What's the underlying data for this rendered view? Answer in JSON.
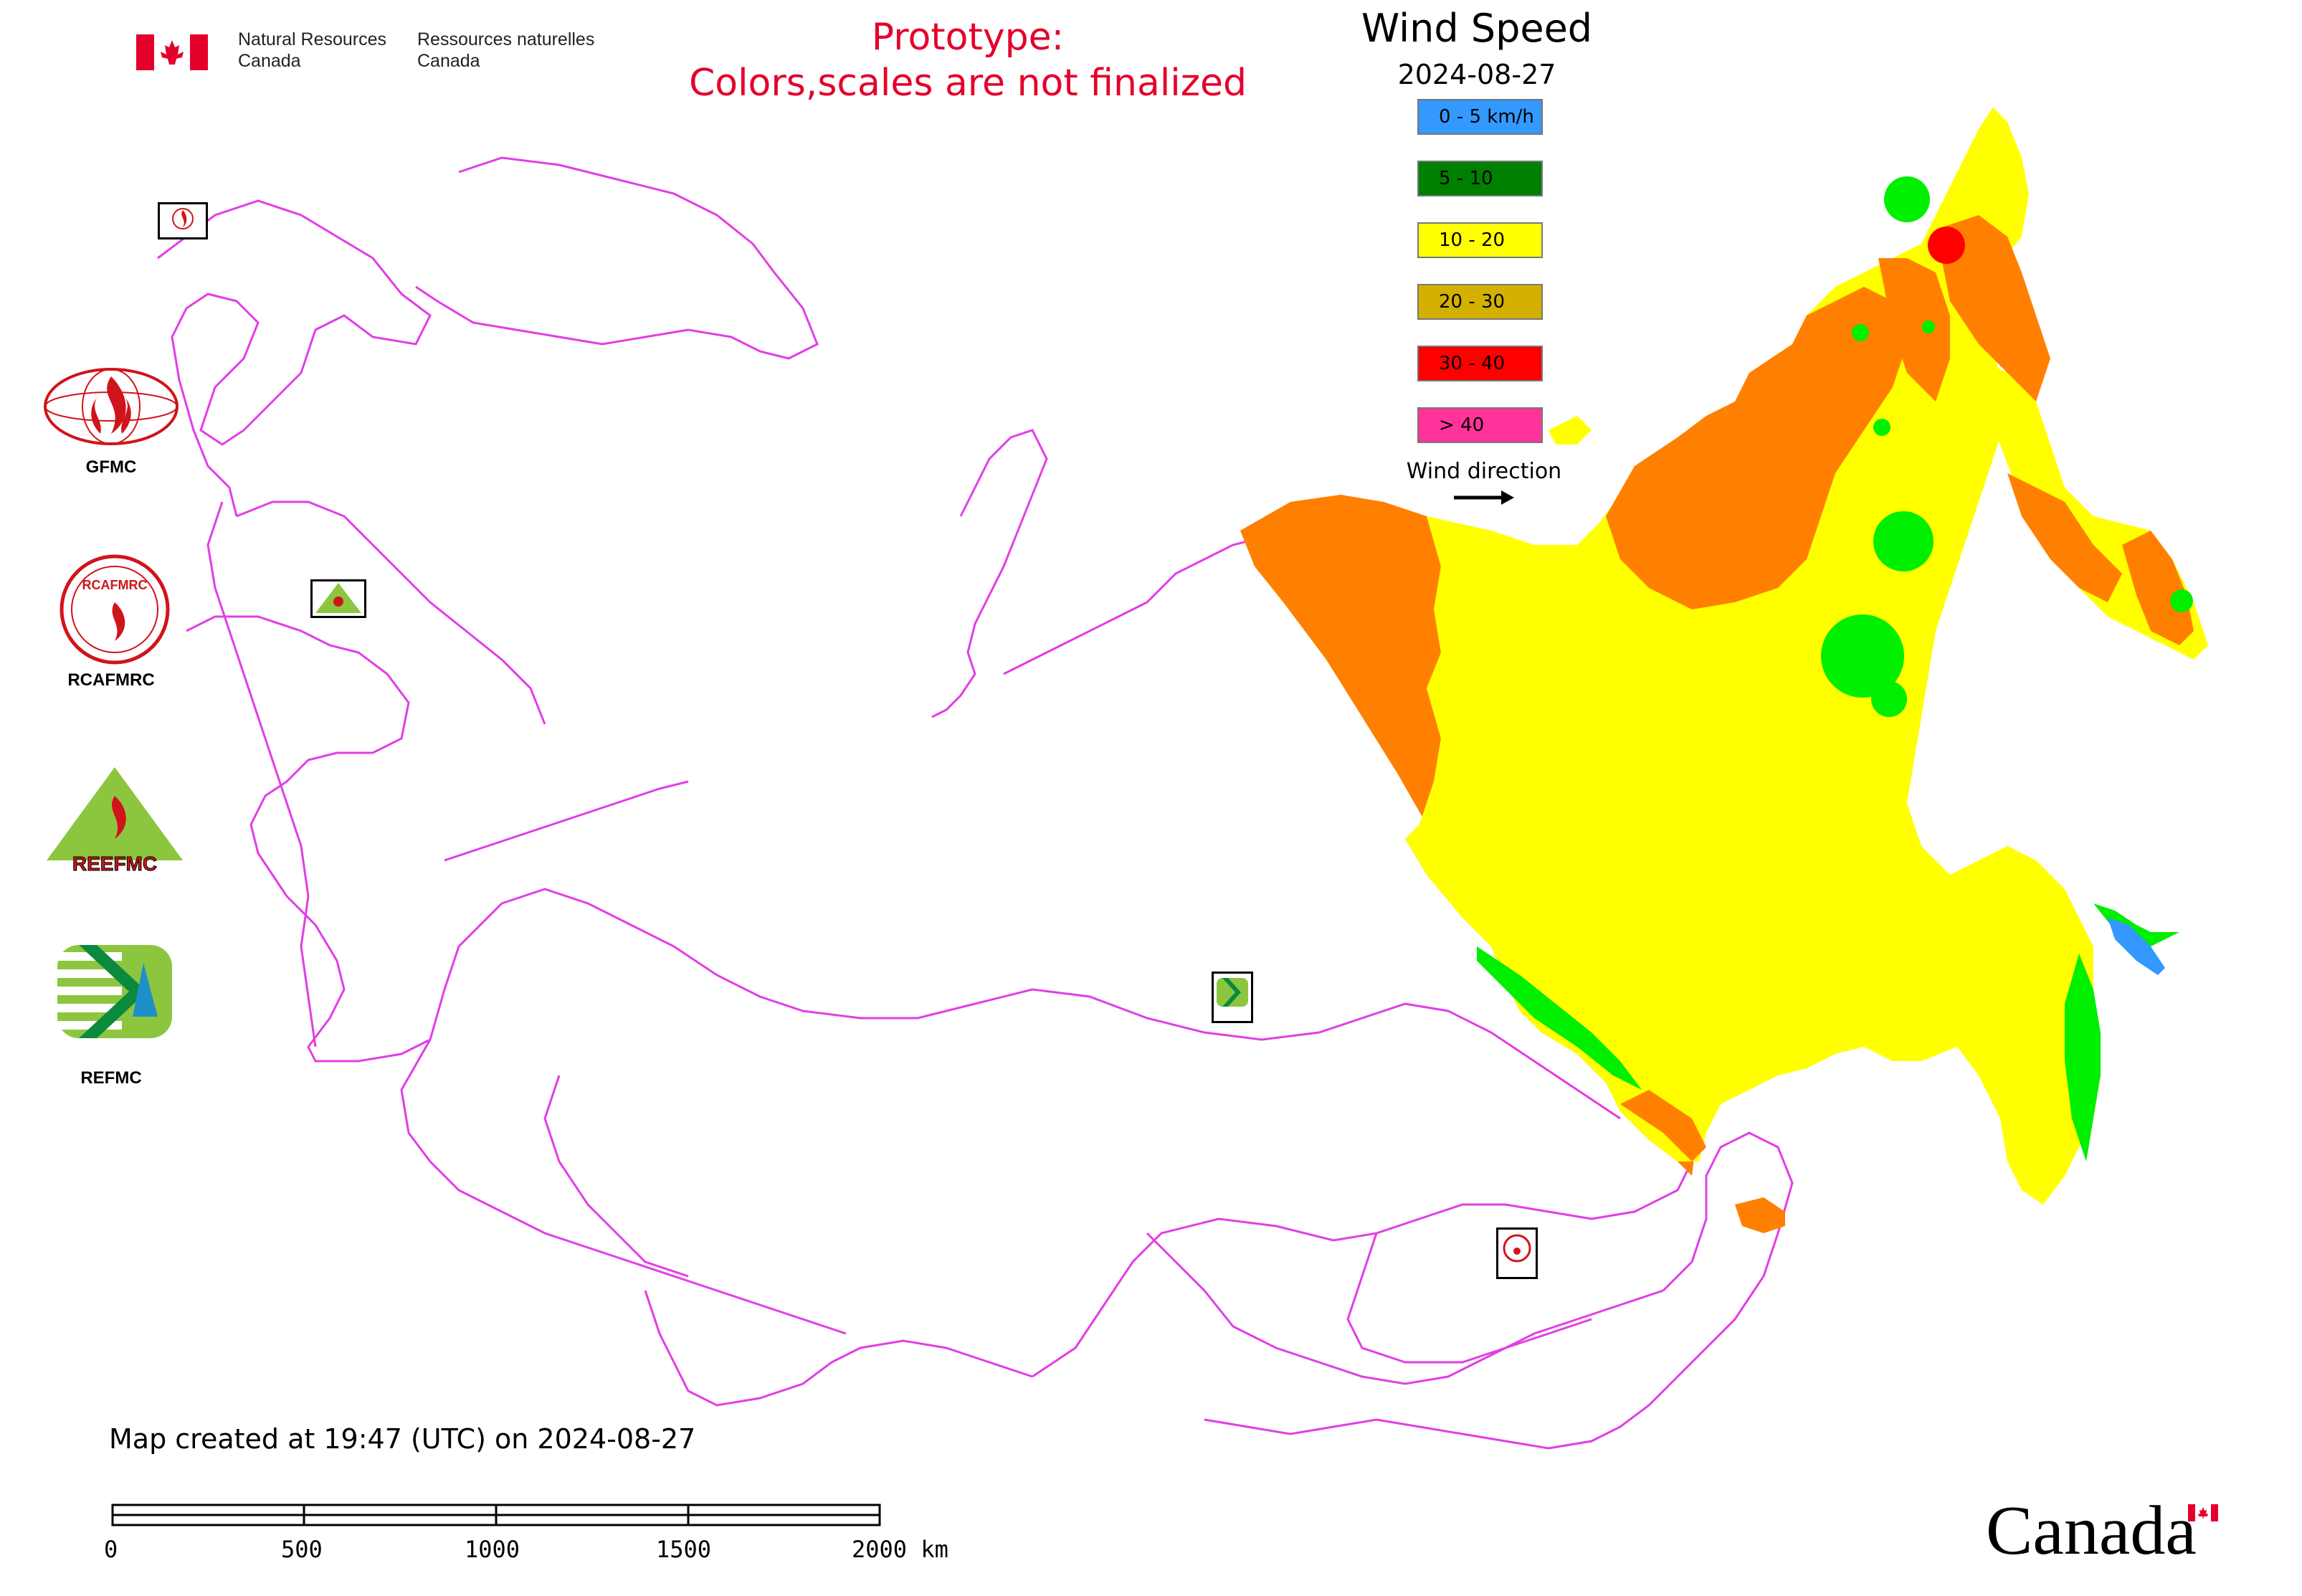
{
  "header": {
    "agency_en_line1": "Natural Resources",
    "agency_en_line2": "Canada",
    "agency_fr_line1": "Ressources naturelles",
    "agency_fr_line2": "Canada",
    "prototype_line1": "Prototype:",
    "prototype_line2": "Colors,scales are not finalized"
  },
  "legend": {
    "title": "Wind Speed",
    "date": "2024-08-27",
    "classes": [
      {
        "label": "0 - 5 km/h",
        "color": "#3399ff"
      },
      {
        "label": "5 - 10",
        "color": "#008000"
      },
      {
        "label": "10 - 20",
        "color": "#ffff00"
      },
      {
        "label": "20 - 30",
        "color": "#d4b000"
      },
      {
        "label": "30 - 40",
        "color": "#ff0000"
      },
      {
        "label": "> 40",
        "color": "#ff3399"
      }
    ],
    "wind_direction_label": "Wind direction"
  },
  "side_logos": {
    "gfmc": "GFMC",
    "rcafmrc": "RCAFMRC",
    "reefmc": "REEFMC",
    "refmc": "REFMC",
    "gfmc_logo_text": "GFMC",
    "rcafmrc_logo_text": "RCAFMRC",
    "reefmc_logo_text": "REEFMC",
    "refmc_logo_text": "REFMC"
  },
  "map_colors": {
    "boundary": "#e23ee6",
    "calm": "#3399ff",
    "light": "#00ee00",
    "moderate": "#ffff00",
    "strong": "#ff8000",
    "very_strong": "#ff0000",
    "extreme": "#ff3399"
  },
  "footer": {
    "created": "Map created at 19:47 (UTC) on 2024-08-27",
    "scale_labels": [
      "0",
      "500",
      "1000",
      "1500",
      "2000 km"
    ],
    "wordmark": "Canada"
  }
}
